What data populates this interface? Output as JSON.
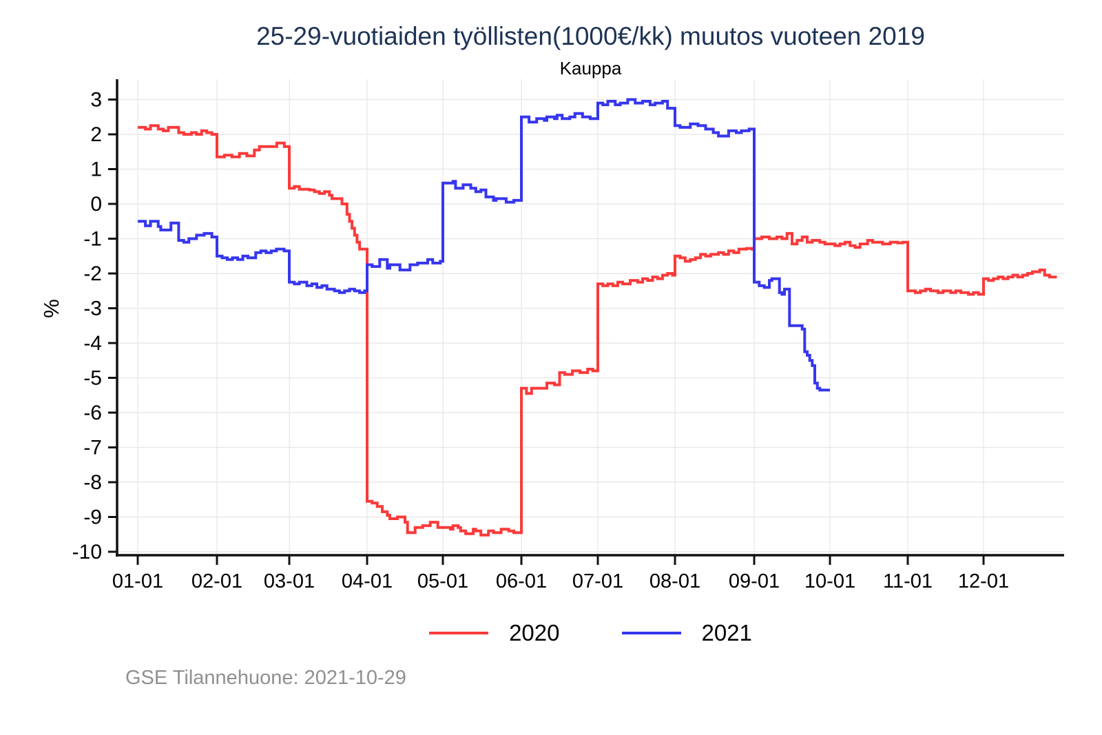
{
  "chart_data": {
    "type": "line",
    "step": true,
    "title": "25-29-vuotiaiden työllisten(1000€/kk) muutos vuoteen 2019",
    "subtitle": "Kauppa",
    "ylabel": "%",
    "footer": "GSE Tilannehuone: 2021-10-29",
    "grid": true,
    "legend_position": "bottom-center",
    "y_ticks": [
      3,
      2,
      1,
      0,
      -1,
      -2,
      -3,
      -4,
      -5,
      -6,
      -7,
      -8,
      -9,
      -10
    ],
    "ylim": [
      -10.6,
      3.6
    ],
    "x_tick_labels": [
      "01-01",
      "02-01",
      "03-01",
      "04-01",
      "05-01",
      "06-01",
      "07-01",
      "08-01",
      "09-01",
      "10-01",
      "11-01",
      "12-01"
    ],
    "colors": {
      "axis": "#111111",
      "grid": "#e9e9e9",
      "title": "#1e3355",
      "footer": "#909090",
      "series_2020": "#fa3a3a",
      "series_2021": "#3636ee"
    },
    "series": [
      {
        "name": "2020",
        "color_key": "series_2020",
        "year": 2020,
        "end_date": "12-31",
        "points": [
          [
            "01-01",
            2.2
          ],
          [
            "01-04",
            2.15
          ],
          [
            "01-06",
            2.25
          ],
          [
            "01-09",
            2.15
          ],
          [
            "01-11",
            2.1
          ],
          [
            "01-13",
            2.2
          ],
          [
            "01-17",
            2.05
          ],
          [
            "01-19",
            2.0
          ],
          [
            "01-22",
            2.05
          ],
          [
            "01-24",
            2.0
          ],
          [
            "01-26",
            2.1
          ],
          [
            "01-28",
            2.05
          ],
          [
            "01-30",
            2.0
          ],
          [
            "02-01",
            1.35
          ],
          [
            "02-04",
            1.4
          ],
          [
            "02-07",
            1.35
          ],
          [
            "02-10",
            1.45
          ],
          [
            "02-13",
            1.38
          ],
          [
            "02-16",
            1.55
          ],
          [
            "02-18",
            1.65
          ],
          [
            "02-25",
            1.75
          ],
          [
            "02-28",
            1.65
          ],
          [
            "03-01",
            0.45
          ],
          [
            "03-03",
            0.5
          ],
          [
            "03-05",
            0.42
          ],
          [
            "03-09",
            0.4
          ],
          [
            "03-11",
            0.35
          ],
          [
            "03-13",
            0.3
          ],
          [
            "03-15",
            0.35
          ],
          [
            "03-17",
            0.25
          ],
          [
            "03-18",
            0.15
          ],
          [
            "03-22",
            0.0
          ],
          [
            "03-24",
            -0.3
          ],
          [
            "03-25",
            -0.5
          ],
          [
            "03-26",
            -0.7
          ],
          [
            "03-27",
            -0.9
          ],
          [
            "03-28",
            -1.1
          ],
          [
            "03-29",
            -1.3
          ],
          [
            "04-01",
            -8.55
          ],
          [
            "04-03",
            -8.6
          ],
          [
            "04-05",
            -8.7
          ],
          [
            "04-07",
            -8.85
          ],
          [
            "04-09",
            -8.95
          ],
          [
            "04-10",
            -9.05
          ],
          [
            "04-13",
            -9.0
          ],
          [
            "04-16",
            -9.15
          ],
          [
            "04-17",
            -9.45
          ],
          [
            "04-20",
            -9.3
          ],
          [
            "04-23",
            -9.25
          ],
          [
            "04-26",
            -9.15
          ],
          [
            "04-29",
            -9.3
          ],
          [
            "05-04",
            -9.35
          ],
          [
            "05-05",
            -9.25
          ],
          [
            "05-07",
            -9.3
          ],
          [
            "05-08",
            -9.4
          ],
          [
            "05-10",
            -9.48
          ],
          [
            "05-13",
            -9.35
          ],
          [
            "05-14",
            -9.4
          ],
          [
            "05-16",
            -9.52
          ],
          [
            "05-19",
            -9.4
          ],
          [
            "05-21",
            -9.45
          ],
          [
            "05-24",
            -9.35
          ],
          [
            "05-27",
            -9.4
          ],
          [
            "05-29",
            -9.45
          ],
          [
            "06-01",
            -5.3
          ],
          [
            "06-03",
            -5.45
          ],
          [
            "06-05",
            -5.3
          ],
          [
            "06-11",
            -5.15
          ],
          [
            "06-14",
            -5.2
          ],
          [
            "06-16",
            -4.85
          ],
          [
            "06-18",
            -4.9
          ],
          [
            "06-21",
            -4.8
          ],
          [
            "06-24",
            -4.85
          ],
          [
            "06-27",
            -4.75
          ],
          [
            "06-29",
            -4.8
          ],
          [
            "07-01",
            -2.3
          ],
          [
            "07-03",
            -2.35
          ],
          [
            "07-05",
            -2.3
          ],
          [
            "07-07",
            -2.35
          ],
          [
            "07-09",
            -2.25
          ],
          [
            "07-11",
            -2.3
          ],
          [
            "07-14",
            -2.2
          ],
          [
            "07-17",
            -2.25
          ],
          [
            "07-19",
            -2.15
          ],
          [
            "07-21",
            -2.2
          ],
          [
            "07-23",
            -2.1
          ],
          [
            "07-25",
            -2.15
          ],
          [
            "07-27",
            -2.05
          ],
          [
            "07-29",
            -2.0
          ],
          [
            "07-31",
            -2.05
          ],
          [
            "08-01",
            -1.5
          ],
          [
            "08-03",
            -1.55
          ],
          [
            "08-05",
            -1.65
          ],
          [
            "08-07",
            -1.6
          ],
          [
            "08-09",
            -1.55
          ],
          [
            "08-11",
            -1.45
          ],
          [
            "08-13",
            -1.5
          ],
          [
            "08-15",
            -1.45
          ],
          [
            "08-18",
            -1.4
          ],
          [
            "08-20",
            -1.45
          ],
          [
            "08-22",
            -1.35
          ],
          [
            "08-24",
            -1.4
          ],
          [
            "08-26",
            -1.3
          ],
          [
            "08-29",
            -1.28
          ],
          [
            "08-31",
            -1.3
          ],
          [
            "09-01",
            -1.0
          ],
          [
            "09-04",
            -0.95
          ],
          [
            "09-07",
            -1.0
          ],
          [
            "09-10",
            -0.95
          ],
          [
            "09-12",
            -1.0
          ],
          [
            "09-14",
            -0.85
          ],
          [
            "09-16",
            -1.15
          ],
          [
            "09-18",
            -1.05
          ],
          [
            "09-20",
            -0.95
          ],
          [
            "09-22",
            -1.1
          ],
          [
            "09-24",
            -1.05
          ],
          [
            "09-27",
            -1.1
          ],
          [
            "09-29",
            -1.15
          ],
          [
            "10-01",
            -1.15
          ],
          [
            "10-03",
            -1.2
          ],
          [
            "10-05",
            -1.15
          ],
          [
            "10-07",
            -1.1
          ],
          [
            "10-09",
            -1.2
          ],
          [
            "10-11",
            -1.25
          ],
          [
            "10-13",
            -1.15
          ],
          [
            "10-16",
            -1.05
          ],
          [
            "10-18",
            -1.1
          ],
          [
            "10-22",
            -1.15
          ],
          [
            "10-25",
            -1.1
          ],
          [
            "10-28",
            -1.12
          ],
          [
            "10-30",
            -1.1
          ],
          [
            "11-01",
            -2.5
          ],
          [
            "11-04",
            -2.55
          ],
          [
            "11-06",
            -2.5
          ],
          [
            "11-08",
            -2.45
          ],
          [
            "11-10",
            -2.5
          ],
          [
            "11-13",
            -2.55
          ],
          [
            "11-15",
            -2.5
          ],
          [
            "11-18",
            -2.55
          ],
          [
            "11-20",
            -2.5
          ],
          [
            "11-22",
            -2.55
          ],
          [
            "11-25",
            -2.6
          ],
          [
            "11-27",
            -2.55
          ],
          [
            "11-29",
            -2.6
          ],
          [
            "12-01",
            -2.15
          ],
          [
            "12-03",
            -2.2
          ],
          [
            "12-05",
            -2.15
          ],
          [
            "12-07",
            -2.1
          ],
          [
            "12-09",
            -2.15
          ],
          [
            "12-11",
            -2.1
          ],
          [
            "12-13",
            -2.05
          ],
          [
            "12-15",
            -2.1
          ],
          [
            "12-17",
            -2.05
          ],
          [
            "12-19",
            -2.0
          ],
          [
            "12-21",
            -1.95
          ],
          [
            "12-24",
            -1.9
          ],
          [
            "12-26",
            -2.05
          ],
          [
            "12-28",
            -2.1
          ],
          [
            "12-30",
            -2.1
          ]
        ]
      },
      {
        "name": "2021",
        "color_key": "series_2021",
        "year": 2021,
        "end_date": "10-01",
        "points": [
          [
            "01-01",
            -0.5
          ],
          [
            "01-04",
            -0.63
          ],
          [
            "01-06",
            -0.5
          ],
          [
            "01-09",
            -0.65
          ],
          [
            "01-10",
            -0.75
          ],
          [
            "01-14",
            -0.55
          ],
          [
            "01-17",
            -1.05
          ],
          [
            "01-19",
            -1.1
          ],
          [
            "01-21",
            -1.0
          ],
          [
            "01-24",
            -0.9
          ],
          [
            "01-27",
            -0.85
          ],
          [
            "01-30",
            -0.95
          ],
          [
            "02-01",
            -1.5
          ],
          [
            "02-03",
            -1.55
          ],
          [
            "02-05",
            -1.6
          ],
          [
            "02-07",
            -1.55
          ],
          [
            "02-09",
            -1.6
          ],
          [
            "02-11",
            -1.5
          ],
          [
            "02-13",
            -1.55
          ],
          [
            "02-16",
            -1.4
          ],
          [
            "02-18",
            -1.35
          ],
          [
            "02-20",
            -1.4
          ],
          [
            "02-22",
            -1.35
          ],
          [
            "02-24",
            -1.3
          ],
          [
            "02-27",
            -1.35
          ],
          [
            "03-01",
            -2.25
          ],
          [
            "03-03",
            -2.3
          ],
          [
            "03-05",
            -2.25
          ],
          [
            "03-08",
            -2.35
          ],
          [
            "03-10",
            -2.3
          ],
          [
            "03-12",
            -2.4
          ],
          [
            "03-14",
            -2.35
          ],
          [
            "03-16",
            -2.45
          ],
          [
            "03-19",
            -2.5
          ],
          [
            "03-21",
            -2.55
          ],
          [
            "03-23",
            -2.5
          ],
          [
            "03-25",
            -2.45
          ],
          [
            "03-27",
            -2.5
          ],
          [
            "03-29",
            -2.55
          ],
          [
            "03-31",
            -2.5
          ],
          [
            "04-01",
            -1.75
          ],
          [
            "04-03",
            -1.8
          ],
          [
            "04-06",
            -1.6
          ],
          [
            "04-09",
            -1.85
          ],
          [
            "04-10",
            -1.75
          ],
          [
            "04-14",
            -1.9
          ],
          [
            "04-18",
            -1.75
          ],
          [
            "04-21",
            -1.7
          ],
          [
            "04-25",
            -1.6
          ],
          [
            "04-27",
            -1.7
          ],
          [
            "04-30",
            -1.65
          ],
          [
            "05-01",
            0.6
          ],
          [
            "05-05",
            0.65
          ],
          [
            "05-06",
            0.45
          ],
          [
            "05-09",
            0.55
          ],
          [
            "05-12",
            0.45
          ],
          [
            "05-14",
            0.35
          ],
          [
            "05-16",
            0.4
          ],
          [
            "05-18",
            0.2
          ],
          [
            "05-21",
            0.1
          ],
          [
            "05-22",
            0.15
          ],
          [
            "05-26",
            0.05
          ],
          [
            "05-29",
            0.1
          ],
          [
            "06-01",
            2.5
          ],
          [
            "06-04",
            2.35
          ],
          [
            "06-07",
            2.45
          ],
          [
            "06-10",
            2.4
          ],
          [
            "06-11",
            2.5
          ],
          [
            "06-14",
            2.45
          ],
          [
            "06-15",
            2.55
          ],
          [
            "06-17",
            2.45
          ],
          [
            "06-20",
            2.5
          ],
          [
            "06-22",
            2.6
          ],
          [
            "06-25",
            2.5
          ],
          [
            "06-28",
            2.45
          ],
          [
            "07-01",
            2.9
          ],
          [
            "07-03",
            2.85
          ],
          [
            "07-05",
            2.95
          ],
          [
            "07-08",
            2.85
          ],
          [
            "07-10",
            2.9
          ],
          [
            "07-13",
            3.0
          ],
          [
            "07-16",
            2.9
          ],
          [
            "07-19",
            2.95
          ],
          [
            "07-22",
            2.85
          ],
          [
            "07-24",
            2.9
          ],
          [
            "07-27",
            2.95
          ],
          [
            "07-29",
            2.75
          ],
          [
            "08-01",
            2.25
          ],
          [
            "08-03",
            2.2
          ],
          [
            "08-07",
            2.3
          ],
          [
            "08-10",
            2.25
          ],
          [
            "08-13",
            2.15
          ],
          [
            "08-16",
            2.05
          ],
          [
            "08-18",
            1.95
          ],
          [
            "08-22",
            2.1
          ],
          [
            "08-25",
            2.05
          ],
          [
            "08-27",
            2.1
          ],
          [
            "08-30",
            2.15
          ],
          [
            "09-01",
            -2.25
          ],
          [
            "09-03",
            -2.35
          ],
          [
            "09-05",
            -2.4
          ],
          [
            "09-07",
            -2.2
          ],
          [
            "09-08",
            -2.15
          ],
          [
            "09-11",
            -2.55
          ],
          [
            "09-12",
            -2.6
          ],
          [
            "09-13",
            -2.45
          ],
          [
            "09-15",
            -3.5
          ],
          [
            "09-20",
            -3.6
          ],
          [
            "09-21",
            -4.25
          ],
          [
            "09-22",
            -4.35
          ],
          [
            "09-23",
            -4.5
          ],
          [
            "09-24",
            -4.65
          ],
          [
            "09-25",
            -5.15
          ],
          [
            "09-26",
            -5.3
          ],
          [
            "09-27",
            -5.35
          ]
        ]
      }
    ]
  },
  "legend": {
    "items": [
      {
        "label": "2020"
      },
      {
        "label": "2021"
      }
    ]
  }
}
